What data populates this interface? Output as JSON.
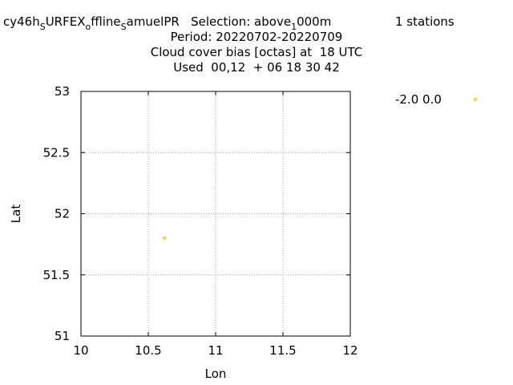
{
  "header": {
    "title_line1_parts": [
      "cy46h",
      "S",
      "URFEX",
      "o",
      "ffline",
      "S",
      "amuelPR   Selection: above",
      "1",
      "000m"
    ],
    "stations_text": "1 stations",
    "title_line2": "Period: 20220702-20220709",
    "title_line3": "Cloud cover bias [octas] at  18 UTC",
    "title_line4": "Used  00,12  + 06 18 30 42"
  },
  "chart_data": {
    "type": "scatter",
    "xlabel": "Lon",
    "ylabel": "Lat",
    "xlim": [
      10,
      12
    ],
    "ylim": [
      51,
      53
    ],
    "xticks": [
      "10",
      "10.5",
      "11",
      "11.5",
      "12"
    ],
    "yticks": [
      "51",
      "51.5",
      "52",
      "52.5",
      "53"
    ],
    "grid": true,
    "series": [
      {
        "name": "-2.0 0.0",
        "color": "#f0d850",
        "marker": "diamond",
        "points": [
          {
            "x": 10.62,
            "y": 51.8
          }
        ]
      }
    ],
    "legend_position": "top-right"
  }
}
